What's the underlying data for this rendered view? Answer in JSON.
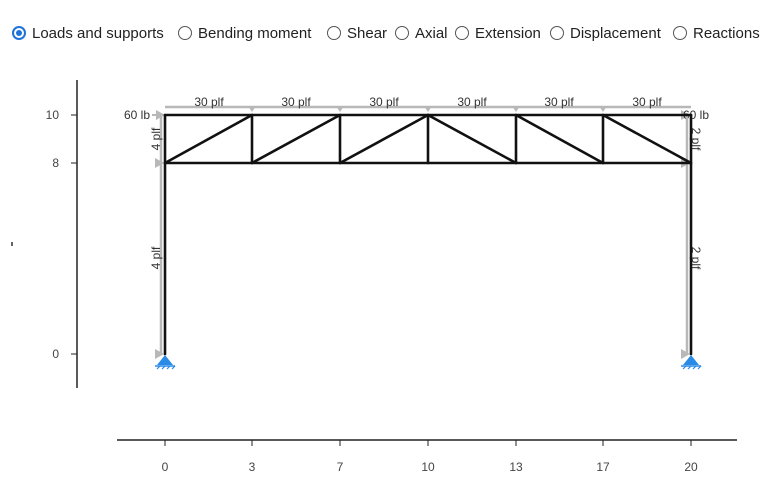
{
  "view_options": {
    "selected": "loads_supports",
    "items": [
      {
        "id": "loads_supports",
        "label": "Loads and supports"
      },
      {
        "id": "bending",
        "label": "Bending moment"
      },
      {
        "id": "shear",
        "label": "Shear"
      },
      {
        "id": "axial",
        "label": "Axial"
      },
      {
        "id": "extension",
        "label": "Extension"
      },
      {
        "id": "displacement",
        "label": "Displacement"
      },
      {
        "id": "reactions",
        "label": "Reactions"
      }
    ]
  },
  "structure": {
    "x_ticks": [
      "0",
      "3",
      "7",
      "10",
      "13",
      "17",
      "20"
    ],
    "y_ticks": [
      "10",
      "8",
      "0"
    ],
    "loads": {
      "top_chord_distributed": [
        "30 plf",
        "30 plf",
        "30 plf",
        "30 plf",
        "30 plf",
        "30 plf"
      ],
      "point_load_left": "60 lb",
      "point_load_right": "60 lb",
      "left_upper_column": "4 plf",
      "left_lower_column": "4 plf",
      "right_upper_column": "2 plf",
      "right_lower_column": "2 plf"
    },
    "colors": {
      "member": "#111111",
      "load": "#b8b8b8",
      "support": "#2a8be6"
    }
  }
}
